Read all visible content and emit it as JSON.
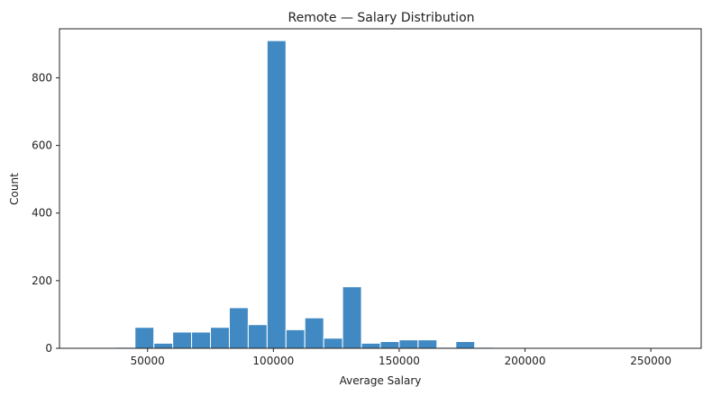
{
  "chart_data": {
    "type": "bar",
    "title": "Remote — Salary Distribution",
    "xlabel": "Average Salary",
    "ylabel": "Count",
    "xlim": [
      15000,
      270000
    ],
    "ylim": [
      0,
      945
    ],
    "xticks": [
      50000,
      100000,
      150000,
      200000,
      250000
    ],
    "yticks": [
      0,
      200,
      400,
      600,
      800
    ],
    "bin_width": 7500,
    "bins": [
      {
        "x0": 37500,
        "x1": 45000,
        "count": 3
      },
      {
        "x0": 45000,
        "x1": 52500,
        "count": 62
      },
      {
        "x0": 52500,
        "x1": 60000,
        "count": 15
      },
      {
        "x0": 60000,
        "x1": 67500,
        "count": 48
      },
      {
        "x0": 67500,
        "x1": 75000,
        "count": 48
      },
      {
        "x0": 75000,
        "x1": 82500,
        "count": 62
      },
      {
        "x0": 82500,
        "x1": 90000,
        "count": 120
      },
      {
        "x0": 90000,
        "x1": 97500,
        "count": 70
      },
      {
        "x0": 97500,
        "x1": 105000,
        "count": 910
      },
      {
        "x0": 105000,
        "x1": 112500,
        "count": 55
      },
      {
        "x0": 112500,
        "x1": 120000,
        "count": 90
      },
      {
        "x0": 120000,
        "x1": 127500,
        "count": 30
      },
      {
        "x0": 127500,
        "x1": 135000,
        "count": 182
      },
      {
        "x0": 135000,
        "x1": 142500,
        "count": 15
      },
      {
        "x0": 142500,
        "x1": 150000,
        "count": 20
      },
      {
        "x0": 150000,
        "x1": 157500,
        "count": 25
      },
      {
        "x0": 157500,
        "x1": 165000,
        "count": 25
      },
      {
        "x0": 165000,
        "x1": 172500,
        "count": 3
      },
      {
        "x0": 172500,
        "x1": 180000,
        "count": 20
      },
      {
        "x0": 180000,
        "x1": 187500,
        "count": 3
      }
    ],
    "grid": false,
    "bar_color": "#4189c3",
    "bar_edge_color": "#ffffff"
  }
}
